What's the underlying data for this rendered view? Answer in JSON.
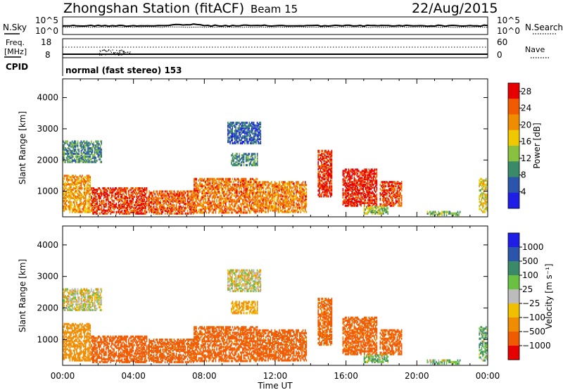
{
  "header": {
    "title": "Zhongshan Station (fitACF)",
    "beam": "Beam 15",
    "date": "22/Aug/2015"
  },
  "noise_panel": {
    "left_label": "N.Sky",
    "right_label": "N.Search",
    "y_ticks": [
      "10^5",
      "10^0"
    ]
  },
  "freq_panel": {
    "left_label_1": "Freq.",
    "left_label_2": "[MHz]",
    "right_label": "Nave",
    "left_ticks": [
      "18",
      "8"
    ],
    "right_ticks": [
      "60",
      "0"
    ]
  },
  "cpid": {
    "label": "CPID",
    "mode": "normal (fast stereo) 153"
  },
  "colors": {
    "power_scale": [
      "#1e1ee6",
      "#2a55aa",
      "#3a8a6a",
      "#88c040",
      "#f0c800",
      "#f08c00",
      "#f05a00",
      "#e60000"
    ],
    "velocity_scale": [
      "#e60000",
      "#f05a00",
      "#f08c00",
      "#f0c000",
      "#bcbcbc",
      "#6ac040",
      "#3a8a6a",
      "#2a55aa",
      "#1e1ee6"
    ],
    "ground_scatter": "#bcbcbc"
  },
  "chart_data": [
    {
      "type": "heatmap",
      "name": "power",
      "ylabel": "Slant Range [km]",
      "ylim": [
        180,
        4600
      ],
      "y_ticks": [
        "1000",
        "2000",
        "3000",
        "4000"
      ],
      "colorbar_label": "Power [dB]",
      "colorbar_ticks": [
        "4",
        "8",
        "12",
        "16",
        "20",
        "24",
        "28"
      ],
      "clim": [
        0,
        30
      ]
    },
    {
      "type": "heatmap",
      "name": "velocity",
      "ylabel": "Slant Range [km]",
      "ylim": [
        180,
        4600
      ],
      "y_ticks": [
        "1000",
        "2000",
        "3000",
        "4000"
      ],
      "colorbar_label": "Velocity [m s⁻¹]",
      "colorbar_ticks": [
        "1000",
        "500",
        "100",
        "25",
        "−25",
        "−100",
        "−500",
        "−1000"
      ]
    }
  ],
  "x_axis": {
    "label": "Time UT",
    "ticks": [
      "00:00",
      "04:00",
      "08:00",
      "12:00",
      "16:00",
      "20:00",
      "00:00"
    ],
    "xlim_hours": [
      0,
      24
    ]
  },
  "scatter_regions": [
    {
      "t0": 0.0,
      "t1": 1.6,
      "r0": 300,
      "r1": 1500,
      "p": 20,
      "v": -70
    },
    {
      "t0": 1.6,
      "t1": 4.8,
      "r0": 250,
      "r1": 1100,
      "p": 26,
      "v": -250
    },
    {
      "t0": 4.8,
      "t1": 7.4,
      "r0": 250,
      "r1": 1000,
      "p": 24,
      "v": -200
    },
    {
      "t0": 7.4,
      "t1": 11.0,
      "r0": 280,
      "r1": 1400,
      "p": 23,
      "v": -180
    },
    {
      "t0": 11.0,
      "t1": 13.8,
      "r0": 300,
      "r1": 1300,
      "p": 22,
      "v": -200
    },
    {
      "t0": 9.3,
      "t1": 11.2,
      "r0": 2500,
      "r1": 3200,
      "p": 6,
      "v": 0
    },
    {
      "t0": 9.5,
      "t1": 11.0,
      "r0": 1800,
      "r1": 2200,
      "p": 10,
      "v": -30
    },
    {
      "t0": 0.0,
      "t1": 2.2,
      "r0": 1900,
      "r1": 2600,
      "p": 9,
      "v": 0
    },
    {
      "t0": 14.4,
      "t1": 15.2,
      "r0": 800,
      "r1": 2300,
      "p": 27,
      "v": -150
    },
    {
      "t0": 15.8,
      "t1": 17.8,
      "r0": 500,
      "r1": 1700,
      "p": 28,
      "v": -180
    },
    {
      "t0": 17.9,
      "t1": 19.2,
      "r0": 500,
      "r1": 1300,
      "p": 26,
      "v": -150
    },
    {
      "t0": 17.0,
      "t1": 18.4,
      "r0": 250,
      "r1": 500,
      "p": 14,
      "v": 80
    },
    {
      "t0": 20.5,
      "t1": 22.5,
      "r0": 200,
      "r1": 350,
      "p": 12,
      "v": 60
    },
    {
      "t0": 23.5,
      "t1": 24.0,
      "r0": 300,
      "r1": 1400,
      "p": 16,
      "v": 120
    }
  ]
}
